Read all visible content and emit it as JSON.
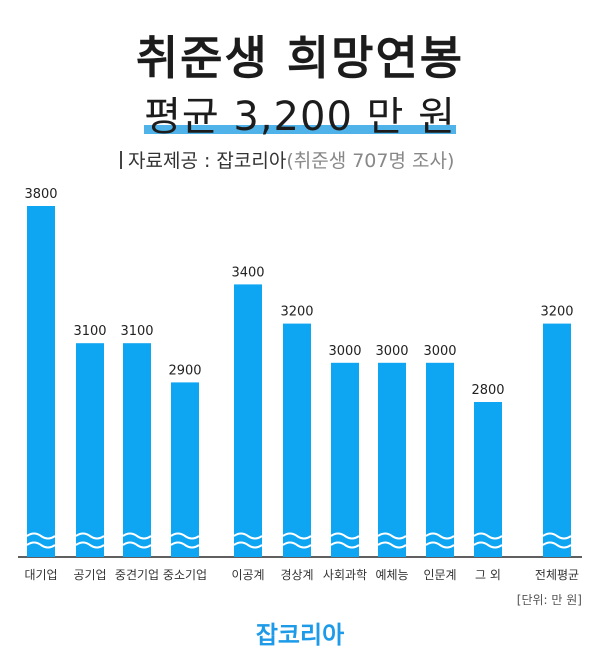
{
  "header": {
    "title": "취준생 희망연봉",
    "subtitle": "평균  3,200 만 원",
    "source_label": "자료제공 : 잡코리아",
    "source_note": "(취준생 707명 조사)"
  },
  "footer": {
    "unit": "[단위: 만 원]",
    "brand": "잡코리아"
  },
  "colors": {
    "bar": "#0ea5f2",
    "highlight": "#4fb3ea",
    "brand": "#1e9be8"
  },
  "chart_data": {
    "type": "bar",
    "title": "취준생 희망연봉",
    "categories": [
      "대기업",
      "공기업",
      "중견기업",
      "중소기업",
      "이공계",
      "경상계",
      "사회과학",
      "예체능",
      "인문계",
      "그 외",
      "전체평균"
    ],
    "values": [
      3800,
      3100,
      3100,
      2900,
      3400,
      3200,
      3000,
      3000,
      3000,
      2800,
      3200
    ],
    "data_labels": [
      "3800",
      "3100",
      "3100",
      "2900",
      "3400",
      "3200",
      "3000",
      "3000",
      "3000",
      "2800",
      "3200"
    ],
    "axis_break": true,
    "ylim": [
      2000,
      3800
    ],
    "grid": false,
    "legend": "none"
  }
}
